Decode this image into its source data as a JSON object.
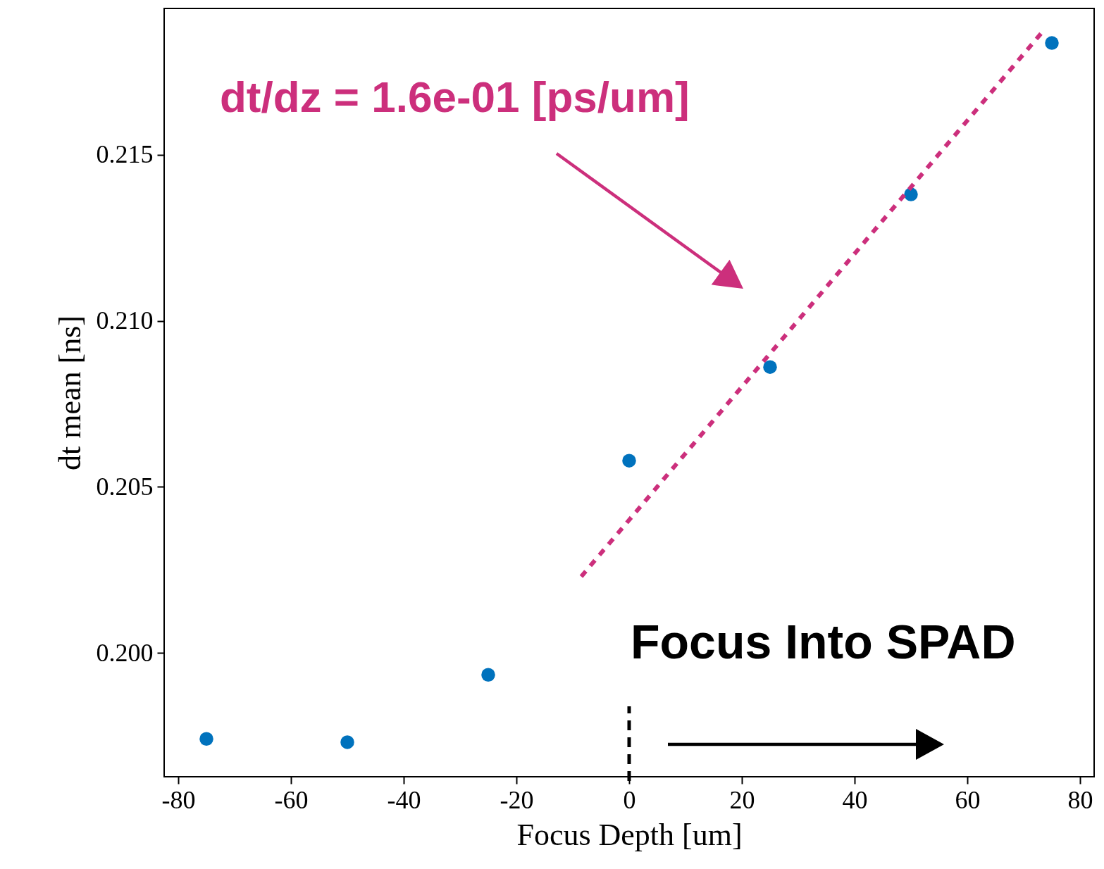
{
  "chart_data": {
    "type": "scatter",
    "xlabel": "Focus Depth [um]",
    "ylabel": "dt mean [ns]",
    "x": [
      -75,
      -50,
      -25,
      0,
      25,
      50,
      75
    ],
    "series": [
      {
        "color": "#0072bd",
        "marker": "circle",
        "values": [
          0.19741,
          0.19731,
          0.19934,
          0.20579,
          0.20861,
          0.21381,
          0.21837
        ]
      },
      {
        "type": "line",
        "color": "#cc2f7c",
        "line_style": "dotted",
        "x": [
          -8.5,
          73.3
        ],
        "values": [
          0.2023,
          0.2187
        ]
      }
    ],
    "xlim": [
      -82.5,
      82.5
    ],
    "ylim": [
      0.19627,
      0.21941
    ],
    "xticks": [
      -80,
      -60,
      -40,
      -20,
      0,
      20,
      40,
      60,
      80
    ],
    "yticks": [
      {
        "value": 0.2,
        "label": "0.200"
      },
      {
        "value": 0.205,
        "label": "0.205"
      },
      {
        "value": 0.21,
        "label": "0.210"
      },
      {
        "value": 0.215,
        "label": "0.215"
      }
    ],
    "ref_lines": [
      {
        "axis": "x",
        "value": 0,
        "color": "#000000",
        "line_style": "dashed"
      }
    ],
    "annotations": [
      "dt/dz = 1.6e-01 [ps/um]",
      "Focus Into SPAD"
    ],
    "grid": false
  }
}
